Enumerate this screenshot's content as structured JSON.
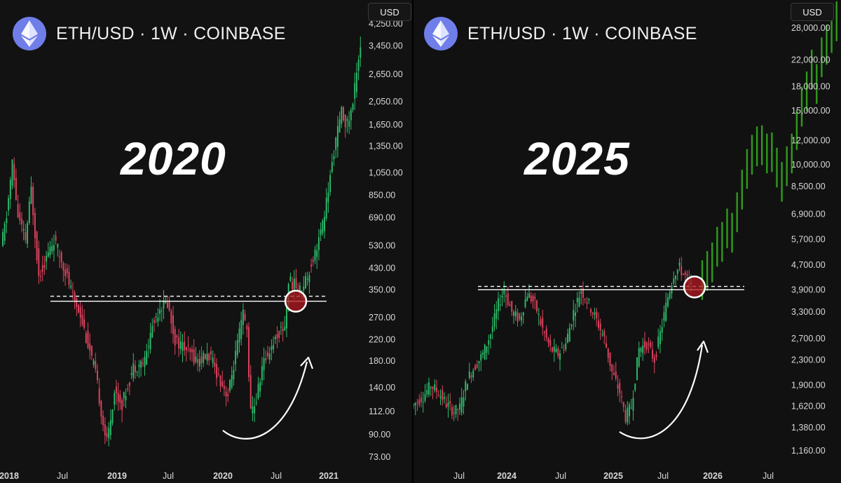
{
  "left": {
    "header_title": "ETH/USD · 1W · COINBASE",
    "year_label": "2020",
    "currency_button": "USD"
  },
  "right": {
    "header_title": "ETH/USD · 1W · COINBASE",
    "year_label": "2025",
    "currency_button": "USD"
  },
  "colors": {
    "up": "#2ebd6b",
    "down": "#e0445f",
    "projection": "#2f9a1c",
    "highlight": "#b01820",
    "background": "#121212"
  },
  "icons": {
    "logo": "ethereum-icon",
    "curve": "curved-arrow-icon"
  },
  "chart_data": [
    {
      "type": "candlestick",
      "title": "ETH/USD · 1W · COINBASE",
      "annotation": "2020",
      "y_scale": "log",
      "y_ticks": [
        "4,250.00",
        "3,450.00",
        "2,650.00",
        "2,050.00",
        "1,650.00",
        "1,350.00",
        "1,050.00",
        "850.00",
        "690.00",
        "530.00",
        "430.00",
        "350.00",
        "270.00",
        "220.00",
        "180.00",
        "140.00",
        "112.00",
        "90.00",
        "73.00"
      ],
      "x_ticks": [
        {
          "label": "2018",
          "bold": true
        },
        {
          "label": "Jul",
          "bold": false
        },
        {
          "label": "2019",
          "bold": true
        },
        {
          "label": "Jul",
          "bold": false
        },
        {
          "label": "2020",
          "bold": true
        },
        {
          "label": "Jul",
          "bold": false
        },
        {
          "label": "2021",
          "bold": true
        }
      ],
      "ylim": [
        73,
        4250
      ],
      "resistance_level": 315,
      "breakout_level": 330
    },
    {
      "type": "candlestick",
      "title": "ETH/USD · 1W · COINBASE",
      "annotation": "2025",
      "y_scale": "log",
      "y_ticks": [
        "28,000.00",
        "22,000.00",
        "18,000.00",
        "15,000.00",
        "12,000.00",
        "10,000.00",
        "8,500.00",
        "6,900.00",
        "5,700.00",
        "4,700.00",
        "3,900.00",
        "3,300.00",
        "2,700.00",
        "2,300.00",
        "1,900.00",
        "1,620.00",
        "1,380.00",
        "1,160.00"
      ],
      "x_ticks": [
        {
          "label": "Jul",
          "bold": false
        },
        {
          "label": "2024",
          "bold": true
        },
        {
          "label": "Jul",
          "bold": false
        },
        {
          "label": "2025",
          "bold": true
        },
        {
          "label": "Jul",
          "bold": false
        },
        {
          "label": "2026",
          "bold": true
        },
        {
          "label": "Jul",
          "bold": false
        }
      ],
      "ylim": [
        1160,
        28000
      ],
      "resistance_level": 3900,
      "breakout_level": 4000
    }
  ]
}
